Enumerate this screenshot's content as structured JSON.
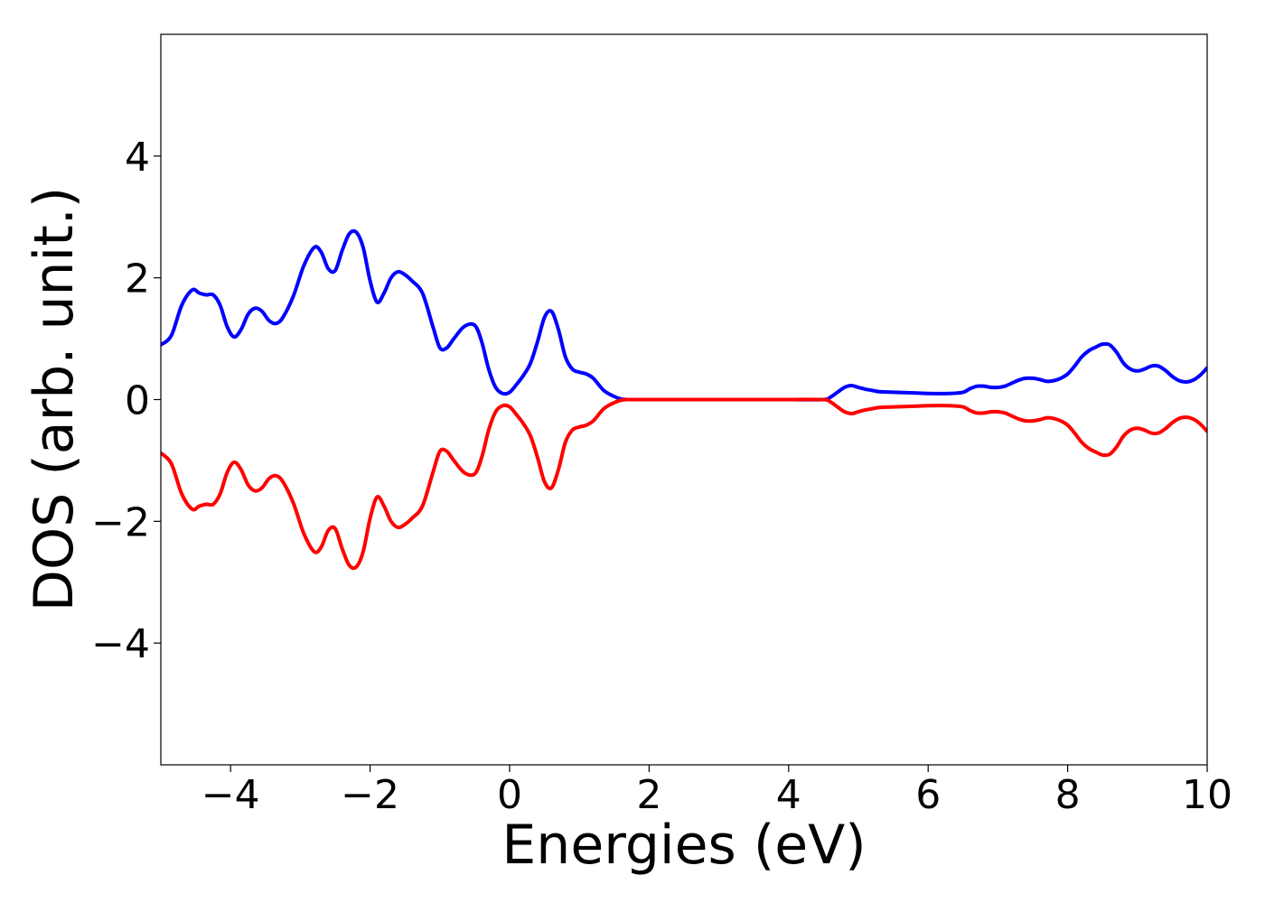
{
  "chart_data": {
    "type": "line",
    "title": "",
    "xlabel": "Energies (eV)",
    "ylabel": "DOS (arb. unit.)",
    "xlim": [
      -5,
      10
    ],
    "ylim": [
      -6,
      6
    ],
    "xticks": [
      -4,
      -2,
      0,
      2,
      4,
      6,
      8,
      10
    ],
    "xtick_labels": [
      "−4",
      "−2",
      "0",
      "2",
      "4",
      "6",
      "8",
      "10"
    ],
    "yticks": [
      -4,
      -2,
      0,
      2,
      4
    ],
    "ytick_labels": [
      "−4",
      "−2",
      "0",
      "2",
      "4"
    ],
    "grid": false,
    "legend": "none",
    "series": [
      {
        "color": "#0000ff",
        "x": [
          -5.0,
          -4.85,
          -4.7,
          -4.55,
          -4.45,
          -4.35,
          -4.25,
          -4.15,
          -4.05,
          -3.95,
          -3.85,
          -3.75,
          -3.65,
          -3.55,
          -3.45,
          -3.35,
          -3.25,
          -3.1,
          -2.95,
          -2.8,
          -2.7,
          -2.6,
          -2.5,
          -2.4,
          -2.3,
          -2.2,
          -2.1,
          -2.0,
          -1.9,
          -1.8,
          -1.7,
          -1.6,
          -1.5,
          -1.4,
          -1.25,
          -1.1,
          -1.0,
          -0.9,
          -0.8,
          -0.65,
          -0.5,
          -0.4,
          -0.3,
          -0.2,
          -0.1,
          0.0,
          0.1,
          0.2,
          0.3,
          0.4,
          0.5,
          0.6,
          0.7,
          0.8,
          0.9,
          1.0,
          1.1,
          1.2,
          1.35,
          1.5,
          1.6,
          1.7,
          1.8,
          2.0,
          2.5,
          3.0,
          3.5,
          4.0,
          4.5,
          4.6,
          4.7,
          4.8,
          4.9,
          5.0,
          5.1,
          5.2,
          5.3,
          5.5,
          5.8,
          6.0,
          6.3,
          6.5,
          6.6,
          6.7,
          6.8,
          6.9,
          7.0,
          7.1,
          7.2,
          7.3,
          7.4,
          7.5,
          7.6,
          7.7,
          7.8,
          7.9,
          8.0,
          8.1,
          8.2,
          8.3,
          8.4,
          8.5,
          8.6,
          8.7,
          8.8,
          8.9,
          9.0,
          9.1,
          9.2,
          9.3,
          9.4,
          9.5,
          9.6,
          9.7,
          9.8,
          9.9,
          10.0
        ],
        "y": [
          0.9,
          1.05,
          1.55,
          1.8,
          1.75,
          1.72,
          1.72,
          1.55,
          1.2,
          1.03,
          1.15,
          1.4,
          1.5,
          1.45,
          1.3,
          1.25,
          1.35,
          1.7,
          2.2,
          2.5,
          2.42,
          2.15,
          2.12,
          2.45,
          2.72,
          2.75,
          2.5,
          1.95,
          1.6,
          1.75,
          2.0,
          2.1,
          2.05,
          1.95,
          1.75,
          1.2,
          0.85,
          0.85,
          1.0,
          1.2,
          1.22,
          0.95,
          0.5,
          0.2,
          0.1,
          0.12,
          0.25,
          0.4,
          0.6,
          0.95,
          1.35,
          1.45,
          1.15,
          0.7,
          0.5,
          0.45,
          0.42,
          0.35,
          0.15,
          0.05,
          0.01,
          0.0,
          0.0,
          0.0,
          0.0,
          0.0,
          0.0,
          0.0,
          0.0,
          0.04,
          0.12,
          0.2,
          0.23,
          0.2,
          0.17,
          0.15,
          0.13,
          0.12,
          0.11,
          0.1,
          0.1,
          0.12,
          0.18,
          0.22,
          0.22,
          0.2,
          0.2,
          0.22,
          0.27,
          0.32,
          0.35,
          0.35,
          0.33,
          0.3,
          0.31,
          0.35,
          0.42,
          0.55,
          0.7,
          0.8,
          0.86,
          0.91,
          0.9,
          0.78,
          0.6,
          0.5,
          0.47,
          0.5,
          0.55,
          0.55,
          0.48,
          0.38,
          0.31,
          0.29,
          0.32,
          0.4,
          0.52
        ]
      },
      {
        "color": "#ff0000",
        "x": [
          -5.0,
          -4.85,
          -4.7,
          -4.55,
          -4.45,
          -4.35,
          -4.25,
          -4.15,
          -4.05,
          -3.95,
          -3.85,
          -3.75,
          -3.65,
          -3.55,
          -3.45,
          -3.35,
          -3.25,
          -3.1,
          -2.95,
          -2.8,
          -2.7,
          -2.6,
          -2.5,
          -2.4,
          -2.3,
          -2.2,
          -2.1,
          -2.0,
          -1.9,
          -1.8,
          -1.7,
          -1.6,
          -1.5,
          -1.4,
          -1.25,
          -1.1,
          -1.0,
          -0.9,
          -0.8,
          -0.65,
          -0.5,
          -0.4,
          -0.3,
          -0.2,
          -0.1,
          0.0,
          0.1,
          0.2,
          0.3,
          0.4,
          0.5,
          0.6,
          0.7,
          0.8,
          0.9,
          1.0,
          1.1,
          1.2,
          1.35,
          1.5,
          1.6,
          1.7,
          1.8,
          2.0,
          2.5,
          3.0,
          3.5,
          4.0,
          4.5,
          4.6,
          4.7,
          4.8,
          4.9,
          5.0,
          5.1,
          5.2,
          5.3,
          5.5,
          5.8,
          6.0,
          6.3,
          6.5,
          6.6,
          6.7,
          6.8,
          6.9,
          7.0,
          7.1,
          7.2,
          7.3,
          7.4,
          7.5,
          7.6,
          7.7,
          7.8,
          7.9,
          8.0,
          8.1,
          8.2,
          8.3,
          8.4,
          8.5,
          8.6,
          8.7,
          8.8,
          8.9,
          9.0,
          9.1,
          9.2,
          9.3,
          9.4,
          9.5,
          9.6,
          9.7,
          9.8,
          9.9,
          10.0
        ],
        "y": [
          -0.88,
          -1.05,
          -1.55,
          -1.8,
          -1.75,
          -1.72,
          -1.72,
          -1.55,
          -1.2,
          -1.03,
          -1.15,
          -1.4,
          -1.5,
          -1.45,
          -1.3,
          -1.25,
          -1.35,
          -1.7,
          -2.2,
          -2.5,
          -2.42,
          -2.15,
          -2.12,
          -2.45,
          -2.72,
          -2.75,
          -2.5,
          -1.95,
          -1.6,
          -1.75,
          -2.0,
          -2.1,
          -2.05,
          -1.95,
          -1.75,
          -1.2,
          -0.85,
          -0.85,
          -1.0,
          -1.2,
          -1.22,
          -0.95,
          -0.5,
          -0.2,
          -0.1,
          -0.12,
          -0.25,
          -0.4,
          -0.6,
          -0.95,
          -1.35,
          -1.45,
          -1.15,
          -0.7,
          -0.5,
          -0.45,
          -0.42,
          -0.35,
          -0.15,
          -0.05,
          -0.01,
          0.0,
          0.0,
          0.0,
          0.0,
          0.0,
          0.0,
          0.0,
          0.0,
          -0.04,
          -0.12,
          -0.2,
          -0.23,
          -0.2,
          -0.17,
          -0.15,
          -0.13,
          -0.12,
          -0.11,
          -0.1,
          -0.1,
          -0.12,
          -0.18,
          -0.22,
          -0.22,
          -0.2,
          -0.2,
          -0.22,
          -0.27,
          -0.32,
          -0.35,
          -0.35,
          -0.33,
          -0.3,
          -0.31,
          -0.35,
          -0.42,
          -0.55,
          -0.7,
          -0.8,
          -0.86,
          -0.91,
          -0.9,
          -0.78,
          -0.6,
          -0.5,
          -0.47,
          -0.5,
          -0.55,
          -0.55,
          -0.48,
          -0.38,
          -0.31,
          -0.29,
          -0.32,
          -0.4,
          -0.52
        ]
      }
    ]
  }
}
